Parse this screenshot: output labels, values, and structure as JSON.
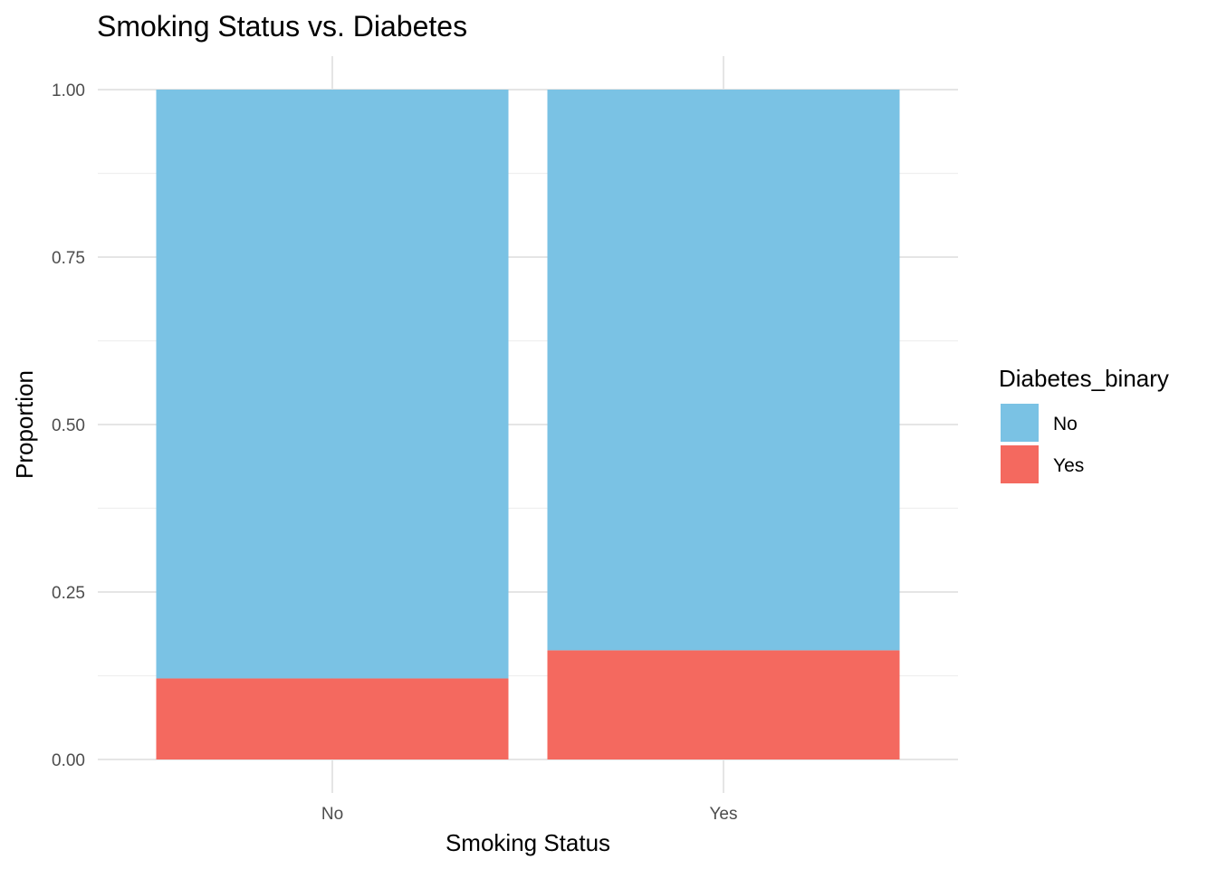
{
  "chart_data": {
    "type": "bar",
    "stacked": true,
    "title": "Smoking Status vs. Diabetes",
    "xlabel": "Smoking Status",
    "ylabel": "Proportion",
    "categories": [
      "No",
      "Yes"
    ],
    "ylim": [
      0,
      1
    ],
    "yticks": [
      "0.00",
      "0.25",
      "0.50",
      "0.75",
      "1.00"
    ],
    "grid": true,
    "legend": {
      "title": "Diabetes_binary",
      "position": "right"
    },
    "series": [
      {
        "name": "Yes",
        "values": [
          0.121,
          0.163
        ],
        "color": "#F4695F"
      },
      {
        "name": "No",
        "values": [
          0.879,
          0.837
        ],
        "color": "#7AC2E4"
      }
    ],
    "legend_order": [
      "No",
      "Yes"
    ]
  }
}
